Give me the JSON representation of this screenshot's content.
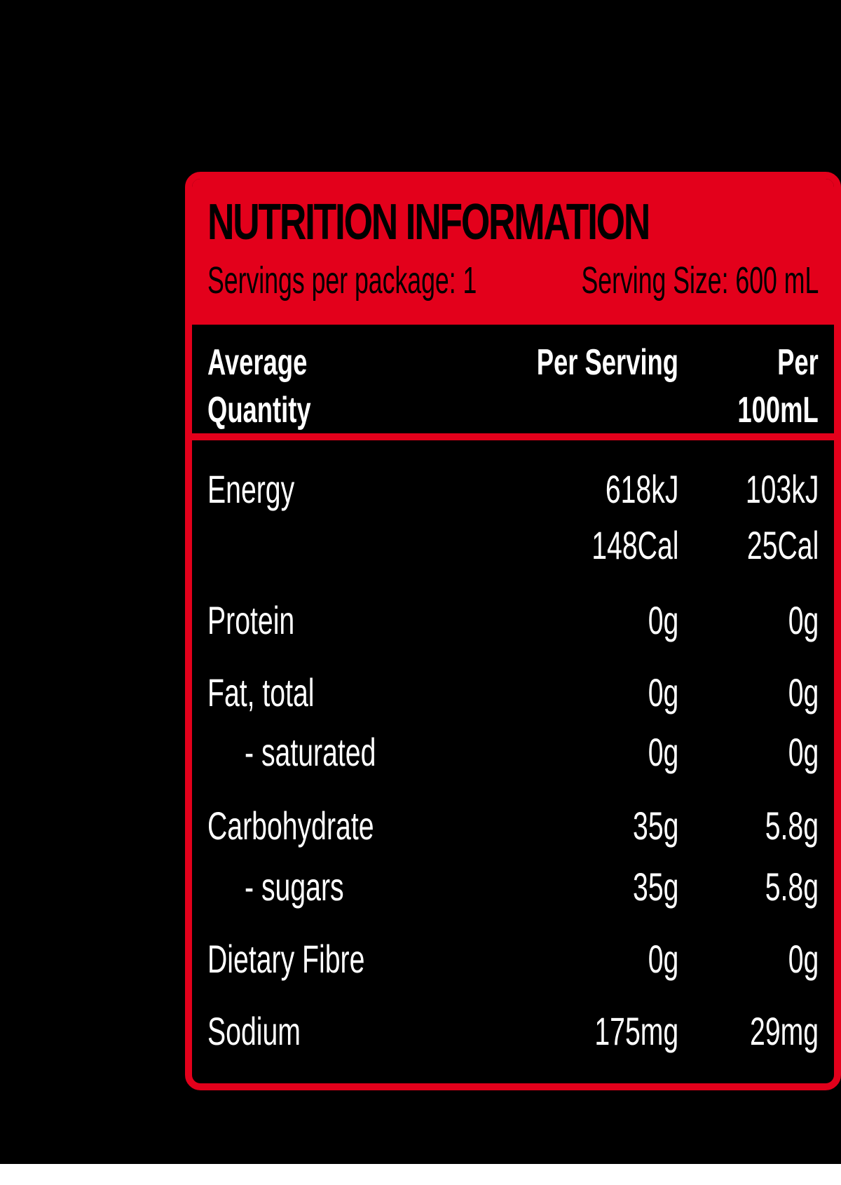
{
  "label": {
    "title": "NUTRITION INFORMATION",
    "servings_per_package": "Servings per package: 1",
    "serving_size": "Serving Size: 600 mL",
    "columns": {
      "name_line1": "Average",
      "name_line2": "Quantity",
      "per_serving": "Per Serving",
      "per_100_line1": "Per",
      "per_100_line2": "100mL"
    },
    "rows": [
      {
        "name": "Energy",
        "per_serving": "618kJ",
        "per_100ml": "103kJ"
      },
      {
        "name": "",
        "per_serving": "148Cal",
        "per_100ml": "25Cal"
      },
      {
        "name": "Protein",
        "per_serving": "0g",
        "per_100ml": "0g"
      },
      {
        "name": "Fat, total",
        "per_serving": "0g",
        "per_100ml": "0g"
      },
      {
        "name": "- saturated",
        "per_serving": "0g",
        "per_100ml": "0g"
      },
      {
        "name": "Carbohydrate",
        "per_serving": "35g",
        "per_100ml": "5.8g"
      },
      {
        "name": "- sugars",
        "per_serving": "35g",
        "per_100ml": "5.8g"
      },
      {
        "name": "Dietary Fibre",
        "per_serving": "0g",
        "per_100ml": "0g"
      },
      {
        "name": "Sodium",
        "per_serving": "175mg",
        "per_100ml": "29mg"
      }
    ]
  },
  "colors": {
    "accent": "#e3001b",
    "background": "#000000",
    "text": "#ffffff"
  }
}
